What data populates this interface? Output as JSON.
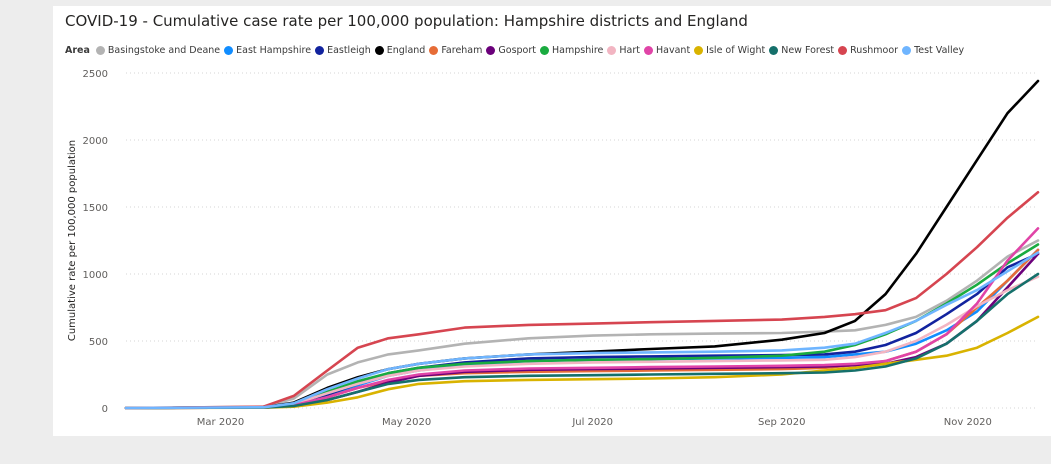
{
  "chart_data": {
    "type": "line",
    "title": "COVID-19 - Cumulative case rate per 100,000 population: Hampshire districts and England",
    "legend_title": "Area",
    "legend_placement": "top-left",
    "xlabel": "",
    "ylabel": "Cumulative rate per 100,000 population",
    "ylim": [
      0,
      2500
    ],
    "yticks": [
      0,
      500,
      1000,
      1500,
      2000,
      2500
    ],
    "xlim": [
      "2020-01-30",
      "2020-11-24"
    ],
    "xticks": [
      {
        "date": "2020-03-01",
        "label": "Mar 2020"
      },
      {
        "date": "2020-05-01",
        "label": "May 2020"
      },
      {
        "date": "2020-07-01",
        "label": "Jul 2020"
      },
      {
        "date": "2020-09-01",
        "label": "Sep 2020"
      },
      {
        "date": "2020-11-01",
        "label": "Nov 2020"
      }
    ],
    "grid": "horizontal-dotted",
    "x": [
      "2020-01-30",
      "2020-03-15",
      "2020-03-25",
      "2020-04-05",
      "2020-04-15",
      "2020-04-25",
      "2020-05-05",
      "2020-05-20",
      "2020-06-10",
      "2020-07-01",
      "2020-07-20",
      "2020-08-10",
      "2020-09-01",
      "2020-09-15",
      "2020-09-25",
      "2020-10-05",
      "2020-10-15",
      "2020-10-25",
      "2020-11-04",
      "2020-11-14",
      "2020-11-24"
    ],
    "series": [
      {
        "name": "Basingstoke and Deane",
        "color": "#b3b3b3",
        "values": [
          0,
          10,
          70,
          250,
          340,
          400,
          430,
          480,
          520,
          540,
          550,
          555,
          560,
          570,
          580,
          620,
          680,
          800,
          950,
          1130,
          1250
        ]
      },
      {
        "name": "East Hampshire",
        "color": "#118dff",
        "values": [
          0,
          5,
          30,
          100,
          170,
          240,
          280,
          320,
          350,
          360,
          365,
          370,
          375,
          380,
          400,
          420,
          480,
          580,
          720,
          950,
          1180
        ]
      },
      {
        "name": "Eastleigh",
        "color": "#12239e",
        "values": [
          0,
          5,
          30,
          100,
          180,
          260,
          300,
          340,
          370,
          380,
          385,
          390,
          395,
          400,
          420,
          470,
          560,
          700,
          850,
          1050,
          1150
        ]
      },
      {
        "name": "England",
        "color": "#000000",
        "values": [
          0,
          5,
          40,
          150,
          230,
          290,
          330,
          370,
          400,
          420,
          440,
          460,
          510,
          560,
          650,
          850,
          1150,
          1500,
          1850,
          2200,
          2440
        ]
      },
      {
        "name": "Fareham",
        "color": "#e66c37",
        "values": [
          0,
          5,
          20,
          80,
          150,
          200,
          240,
          260,
          270,
          275,
          280,
          285,
          290,
          300,
          320,
          350,
          420,
          550,
          750,
          950,
          1180
        ]
      },
      {
        "name": "Gosport",
        "color": "#6b007b",
        "values": [
          0,
          3,
          15,
          60,
          120,
          190,
          240,
          270,
          285,
          290,
          295,
          300,
          305,
          310,
          320,
          330,
          380,
          480,
          650,
          900,
          1150
        ]
      },
      {
        "name": "Hampshire",
        "color": "#1aab40",
        "values": [
          0,
          5,
          30,
          120,
          200,
          260,
          300,
          330,
          350,
          360,
          365,
          375,
          390,
          420,
          470,
          550,
          650,
          780,
          920,
          1080,
          1220
        ]
      },
      {
        "name": "Hart",
        "color": "#f2b5c2",
        "values": [
          0,
          5,
          30,
          110,
          180,
          240,
          280,
          310,
          330,
          340,
          345,
          350,
          355,
          360,
          380,
          420,
          500,
          620,
          760,
          880,
          980
        ]
      },
      {
        "name": "Havant",
        "color": "#e044a7",
        "values": [
          0,
          3,
          20,
          80,
          150,
          210,
          250,
          280,
          295,
          300,
          305,
          310,
          315,
          320,
          330,
          350,
          420,
          550,
          780,
          1100,
          1340
        ]
      },
      {
        "name": "Isle of Wight",
        "color": "#d9b300",
        "values": [
          0,
          2,
          10,
          40,
          80,
          140,
          180,
          200,
          210,
          215,
          220,
          230,
          250,
          280,
          300,
          330,
          360,
          390,
          450,
          560,
          680
        ]
      },
      {
        "name": "New Forest",
        "color": "#15706b",
        "values": [
          0,
          3,
          15,
          60,
          120,
          180,
          210,
          230,
          240,
          245,
          250,
          255,
          260,
          265,
          280,
          310,
          370,
          480,
          650,
          850,
          1000
        ]
      },
      {
        "name": "Rushmoor",
        "color": "#d64550",
        "values": [
          0,
          10,
          90,
          280,
          450,
          520,
          550,
          600,
          620,
          630,
          640,
          650,
          660,
          680,
          700,
          730,
          820,
          1000,
          1200,
          1420,
          1610
        ]
      },
      {
        "name": "Test Valley",
        "color": "#6fb5ff",
        "values": [
          0,
          5,
          35,
          140,
          220,
          290,
          330,
          370,
          400,
          410,
          415,
          420,
          430,
          450,
          480,
          560,
          650,
          770,
          880,
          1020,
          1160
        ]
      }
    ]
  }
}
